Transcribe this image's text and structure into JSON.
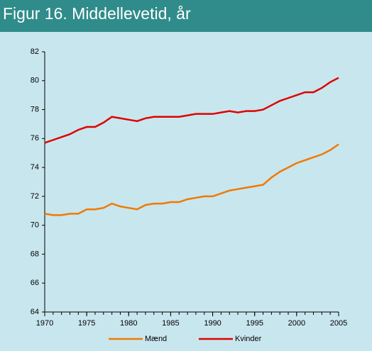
{
  "chart_data": {
    "type": "line",
    "title": "Figur 16. Middellevetid, år",
    "x": [
      1970,
      1971,
      1972,
      1973,
      1974,
      1975,
      1976,
      1977,
      1978,
      1979,
      1980,
      1981,
      1982,
      1983,
      1984,
      1985,
      1986,
      1987,
      1988,
      1989,
      1990,
      1991,
      1992,
      1993,
      1994,
      1995,
      1996,
      1997,
      1998,
      1999,
      2000,
      2001,
      2002,
      2003,
      2004,
      2005
    ],
    "series": [
      {
        "name": "Mænd",
        "color": "#f07a00",
        "values": [
          70.8,
          70.7,
          70.7,
          70.8,
          70.8,
          71.1,
          71.1,
          71.2,
          71.5,
          71.3,
          71.2,
          71.1,
          71.4,
          71.5,
          71.5,
          71.6,
          71.6,
          71.8,
          71.9,
          72.0,
          72.0,
          72.2,
          72.4,
          72.5,
          72.6,
          72.7,
          72.8,
          73.3,
          73.7,
          74.0,
          74.3,
          74.5,
          74.7,
          74.9,
          75.2,
          75.6
        ]
      },
      {
        "name": "Kvinder",
        "color": "#e00000",
        "values": [
          75.7,
          75.9,
          76.1,
          76.3,
          76.6,
          76.8,
          76.8,
          77.1,
          77.5,
          77.4,
          77.3,
          77.2,
          77.4,
          77.5,
          77.5,
          77.5,
          77.5,
          77.6,
          77.7,
          77.7,
          77.7,
          77.8,
          77.9,
          77.8,
          77.9,
          77.9,
          78.0,
          78.3,
          78.6,
          78.8,
          79.0,
          79.2,
          79.2,
          79.5,
          79.9,
          80.2
        ]
      }
    ],
    "xlim": [
      1970,
      2005
    ],
    "xticks": [
      1970,
      1975,
      1980,
      1985,
      1990,
      1995,
      2000,
      2005
    ],
    "ylim": [
      64,
      82
    ],
    "yticks": [
      64,
      66,
      68,
      70,
      72,
      74,
      76,
      78,
      80,
      82
    ],
    "legend": "bottom"
  }
}
